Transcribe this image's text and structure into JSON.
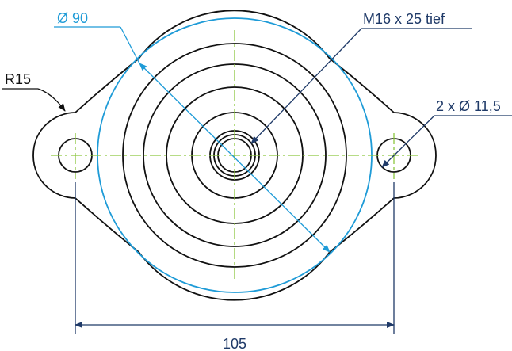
{
  "labels": {
    "diameter_outer": "Ø 90",
    "thread": "M16 x 25 tief",
    "radius": "R15",
    "holes": "2 x Ø 11,5",
    "hole_spacing": "105"
  },
  "colors": {
    "outline": "#111111",
    "centerline": "#8cc63f",
    "dimension": "#1f3a68",
    "highlight": "#1e9bd7"
  }
}
